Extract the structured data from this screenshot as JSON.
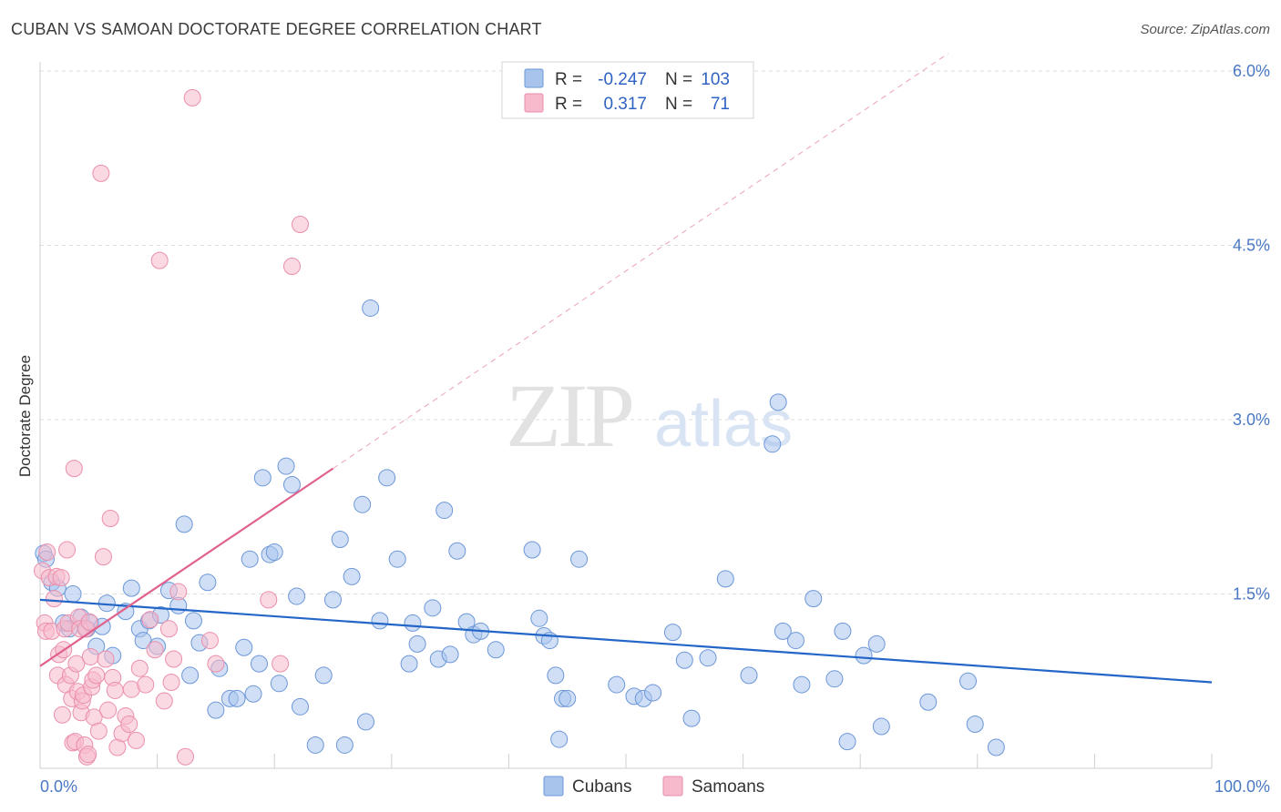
{
  "chart_data": {
    "type": "scatter",
    "title": "CUBAN VS SAMOAN DOCTORATE DEGREE CORRELATION CHART",
    "source": "Source: ZipAtlas.com",
    "ylabel": "Doctorate Degree",
    "xlabel": "",
    "xlim": [
      0,
      100
    ],
    "ylim": [
      0,
      6.0
    ],
    "x_tick_labels": [
      "0.0%",
      "100.0%"
    ],
    "y_ticks": [
      1.5,
      3.0,
      4.5,
      6.0
    ],
    "y_tick_labels": [
      "1.5%",
      "3.0%",
      "4.5%",
      "6.0%"
    ],
    "watermark": {
      "zip": "ZIP",
      "atlas": "atlas"
    },
    "colors": {
      "cubans_fill": "#a9c4ec",
      "cubans_stroke": "#6c97d8",
      "cubans_line": "#2466c8",
      "samoans_fill": "#f7b9cc",
      "samoans_stroke": "#ea8fab",
      "samoans_line": "#e0618d",
      "tick_label": "#4a78c4",
      "grid": "#dcdcdc"
    },
    "legend": {
      "r_label": "R =",
      "n_label": "N =",
      "entries": [
        {
          "series": "Cubans",
          "r": "-0.247",
          "n": "103"
        },
        {
          "series": "Samoans",
          "r": "0.317",
          "n": "71"
        }
      ]
    },
    "series": [
      {
        "name": "Cubans",
        "trend": {
          "x0": 0,
          "y0": 1.45,
          "x1": 100,
          "y1": 0.74
        },
        "points": [
          [
            0.3,
            1.85
          ],
          [
            0.5,
            1.8
          ],
          [
            1.0,
            1.6
          ],
          [
            1.5,
            1.55
          ],
          [
            2,
            1.25
          ],
          [
            2.5,
            1.2
          ],
          [
            2.8,
            1.5
          ],
          [
            3.5,
            1.3
          ],
          [
            4,
            1.2
          ],
          [
            4.3,
            1.25
          ],
          [
            4.8,
            1.05
          ],
          [
            5.3,
            1.22
          ],
          [
            5.7,
            1.42
          ],
          [
            6.2,
            0.97
          ],
          [
            7.3,
            1.35
          ],
          [
            7.8,
            1.55
          ],
          [
            8.5,
            1.2
          ],
          [
            8.8,
            1.1
          ],
          [
            9.3,
            1.27
          ],
          [
            10,
            1.05
          ],
          [
            10.3,
            1.32
          ],
          [
            11,
            1.53
          ],
          [
            11.8,
            1.4
          ],
          [
            12.3,
            2.1
          ],
          [
            12.8,
            0.8
          ],
          [
            13.1,
            1.27
          ],
          [
            13.6,
            1.08
          ],
          [
            14.3,
            1.6
          ],
          [
            15,
            0.5
          ],
          [
            15.3,
            0.86
          ],
          [
            16.2,
            0.6
          ],
          [
            16.8,
            0.6
          ],
          [
            17.4,
            1.04
          ],
          [
            17.9,
            1.8
          ],
          [
            18.2,
            0.64
          ],
          [
            18.7,
            0.9
          ],
          [
            19,
            2.5
          ],
          [
            19.6,
            1.84
          ],
          [
            20,
            1.86
          ],
          [
            20.4,
            0.73
          ],
          [
            21,
            2.6
          ],
          [
            21.5,
            2.44
          ],
          [
            21.9,
            1.48
          ],
          [
            22.2,
            0.53
          ],
          [
            23.5,
            0.2
          ],
          [
            24.2,
            0.8
          ],
          [
            25,
            1.45
          ],
          [
            25.6,
            1.97
          ],
          [
            26,
            0.2
          ],
          [
            26.6,
            1.65
          ],
          [
            27.5,
            2.27
          ],
          [
            27.8,
            0.4
          ],
          [
            28.2,
            3.96
          ],
          [
            29,
            1.27
          ],
          [
            29.6,
            2.5
          ],
          [
            30.5,
            1.8
          ],
          [
            31.5,
            0.9
          ],
          [
            31.8,
            1.25
          ],
          [
            32.2,
            1.07
          ],
          [
            33.5,
            1.38
          ],
          [
            34,
            0.94
          ],
          [
            34.5,
            2.22
          ],
          [
            35,
            0.98
          ],
          [
            35.6,
            1.87
          ],
          [
            36.4,
            1.26
          ],
          [
            37,
            1.15
          ],
          [
            37.6,
            1.18
          ],
          [
            38.9,
            1.02
          ],
          [
            42,
            1.88
          ],
          [
            42.6,
            1.29
          ],
          [
            43,
            1.14
          ],
          [
            43.5,
            1.1
          ],
          [
            44,
            0.8
          ],
          [
            44.3,
            0.25
          ],
          [
            44.6,
            0.6
          ],
          [
            45,
            0.6
          ],
          [
            46,
            1.8
          ],
          [
            49.2,
            0.72
          ],
          [
            50.7,
            0.62
          ],
          [
            51.5,
            0.6
          ],
          [
            52.3,
            0.65
          ],
          [
            54,
            1.17
          ],
          [
            55,
            0.93
          ],
          [
            55.6,
            0.43
          ],
          [
            57,
            0.95
          ],
          [
            58.5,
            1.63
          ],
          [
            60.5,
            0.8
          ],
          [
            62.5,
            2.79
          ],
          [
            63,
            3.15
          ],
          [
            63.4,
            1.18
          ],
          [
            64.5,
            1.1
          ],
          [
            65,
            0.72
          ],
          [
            66,
            1.46
          ],
          [
            67.8,
            0.77
          ],
          [
            68.5,
            1.18
          ],
          [
            68.9,
            0.23
          ],
          [
            70.3,
            0.97
          ],
          [
            71.4,
            1.07
          ],
          [
            71.8,
            0.36
          ],
          [
            75.8,
            0.57
          ],
          [
            79.2,
            0.75
          ],
          [
            79.8,
            0.38
          ],
          [
            81.6,
            0.18
          ]
        ]
      },
      {
        "name": "Samoans",
        "trend": {
          "x0": 0,
          "y0": 0.88,
          "x1": 25,
          "y1": 2.58
        },
        "points": [
          [
            0.2,
            1.7
          ],
          [
            0.4,
            1.25
          ],
          [
            0.5,
            1.18
          ],
          [
            0.6,
            1.86
          ],
          [
            0.8,
            1.64
          ],
          [
            1.0,
            1.18
          ],
          [
            1.2,
            1.46
          ],
          [
            1.4,
            1.65
          ],
          [
            1.5,
            0.8
          ],
          [
            1.6,
            0.98
          ],
          [
            1.8,
            1.64
          ],
          [
            1.9,
            0.46
          ],
          [
            2.0,
            1.02
          ],
          [
            2.1,
            1.2
          ],
          [
            2.2,
            0.72
          ],
          [
            2.3,
            1.88
          ],
          [
            2.4,
            1.25
          ],
          [
            2.6,
            0.8
          ],
          [
            2.7,
            0.6
          ],
          [
            2.8,
            0.22
          ],
          [
            2.9,
            2.58
          ],
          [
            3.0,
            0.23
          ],
          [
            3.1,
            0.9
          ],
          [
            3.2,
            0.66
          ],
          [
            3.3,
            1.3
          ],
          [
            3.4,
            1.2
          ],
          [
            3.5,
            0.48
          ],
          [
            3.6,
            0.58
          ],
          [
            3.7,
            0.63
          ],
          [
            3.8,
            0.2
          ],
          [
            3.9,
            1.2
          ],
          [
            4.0,
            0.1
          ],
          [
            4.1,
            0.12
          ],
          [
            4.2,
            1.26
          ],
          [
            4.3,
            0.96
          ],
          [
            4.4,
            0.7
          ],
          [
            4.5,
            0.76
          ],
          [
            4.6,
            0.44
          ],
          [
            4.8,
            0.8
          ],
          [
            5.0,
            0.32
          ],
          [
            5.2,
            5.12
          ],
          [
            5.4,
            1.82
          ],
          [
            5.6,
            0.94
          ],
          [
            5.8,
            0.5
          ],
          [
            6.0,
            2.15
          ],
          [
            6.2,
            0.78
          ],
          [
            6.4,
            0.67
          ],
          [
            6.6,
            0.18
          ],
          [
            7.0,
            0.3
          ],
          [
            7.3,
            0.45
          ],
          [
            7.6,
            0.38
          ],
          [
            7.8,
            0.68
          ],
          [
            8.2,
            0.24
          ],
          [
            8.5,
            0.86
          ],
          [
            9.0,
            0.72
          ],
          [
            9.4,
            1.28
          ],
          [
            9.8,
            1.02
          ],
          [
            10.2,
            4.37
          ],
          [
            10.6,
            0.58
          ],
          [
            11.0,
            1.2
          ],
          [
            11.2,
            0.74
          ],
          [
            11.4,
            0.94
          ],
          [
            11.8,
            1.52
          ],
          [
            12.4,
            0.1
          ],
          [
            13,
            5.77
          ],
          [
            14.5,
            1.1
          ],
          [
            15,
            0.9
          ],
          [
            19.5,
            1.45
          ],
          [
            20.5,
            0.9
          ],
          [
            21.5,
            4.32
          ],
          [
            22.2,
            4.68
          ]
        ]
      }
    ]
  }
}
